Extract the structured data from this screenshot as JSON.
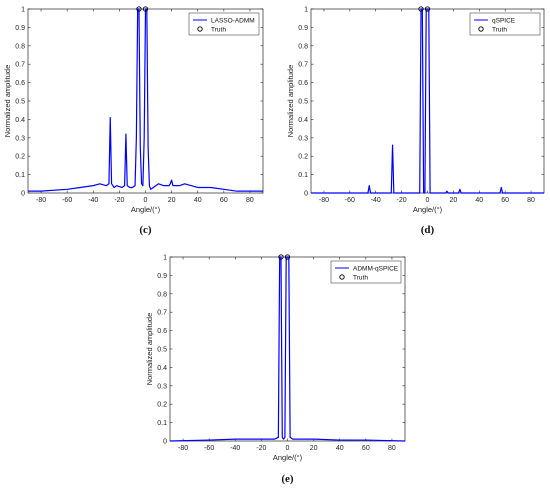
{
  "chart_data": [
    {
      "panel": "(c)",
      "type": "line",
      "xlabel": "Angle/(°)",
      "ylabel": "Normalized amplitude",
      "xlim": [
        -90,
        90
      ],
      "ylim": [
        0,
        1
      ],
      "xticks": [
        -80,
        -60,
        -40,
        -20,
        0,
        20,
        40,
        60,
        80
      ],
      "yticks": [
        0,
        0.1,
        0.2,
        0.3,
        0.4,
        0.5,
        0.6,
        0.7,
        0.8,
        0.9,
        1
      ],
      "legend_position": "top-right",
      "series": [
        {
          "name": "LASSO-ADMM",
          "color": "#0000ff",
          "style": "line",
          "x": [
            -90,
            -80,
            -60,
            -50,
            -40,
            -35,
            -30,
            -28,
            -27,
            -26,
            -24,
            -22,
            -18,
            -16,
            -15,
            -14,
            -12,
            -10,
            -8,
            -7,
            -6,
            -5,
            -4,
            -3,
            -2,
            -1,
            0,
            1,
            2,
            3,
            4,
            6,
            8,
            10,
            14,
            18,
            19,
            20,
            21,
            22,
            26,
            30,
            40,
            50,
            60,
            70,
            80,
            90
          ],
          "y": [
            0.01,
            0.01,
            0.02,
            0.03,
            0.04,
            0.05,
            0.04,
            0.05,
            0.41,
            0.05,
            0.03,
            0.04,
            0.03,
            0.04,
            0.32,
            0.04,
            0.03,
            0.03,
            0.04,
            0.3,
            1,
            1,
            0.25,
            0.05,
            0.04,
            0.3,
            1,
            1,
            0.25,
            0.04,
            0.02,
            0.03,
            0.04,
            0.05,
            0.04,
            0.04,
            0.05,
            0.07,
            0.04,
            0.04,
            0.04,
            0.05,
            0.03,
            0.03,
            0.02,
            0.01,
            0.01,
            0.01
          ]
        },
        {
          "name": "Truth",
          "style": "marker",
          "color": "#000000",
          "x": [
            -5,
            0
          ],
          "y": [
            1,
            1
          ]
        }
      ]
    },
    {
      "panel": "(d)",
      "type": "line",
      "xlabel": "Angle/(°)",
      "ylabel": "Normalized amplitude",
      "xlim": [
        -90,
        90
      ],
      "ylim": [
        0,
        1
      ],
      "xticks": [
        -80,
        -60,
        -40,
        -20,
        0,
        20,
        40,
        60,
        80
      ],
      "yticks": [
        0,
        0.1,
        0.2,
        0.3,
        0.4,
        0.5,
        0.6,
        0.7,
        0.8,
        0.9,
        1
      ],
      "legend_position": "top-right",
      "series": [
        {
          "name": "qSPICE",
          "color": "#0000ff",
          "style": "line",
          "x": [
            -90,
            -46,
            -45,
            -44,
            -28,
            -27,
            -26,
            -6,
            -5,
            -4,
            -3,
            -2,
            -1,
            0,
            1,
            2,
            14,
            15,
            16,
            24,
            25,
            26,
            56,
            57,
            58,
            90
          ],
          "y": [
            0,
            0,
            0.04,
            0,
            0,
            0.26,
            0,
            0,
            1,
            1,
            0,
            0,
            1,
            1,
            1,
            0,
            0,
            0.01,
            0,
            0,
            0.02,
            0,
            0,
            0.03,
            0,
            0
          ]
        },
        {
          "name": "Truth",
          "style": "marker",
          "color": "#000000",
          "x": [
            -5,
            0
          ],
          "y": [
            1,
            1
          ]
        }
      ]
    },
    {
      "panel": "(e)",
      "type": "line",
      "xlabel": "Angle/(°)",
      "ylabel": "Normalized amplitude",
      "xlim": [
        -90,
        90
      ],
      "ylim": [
        0,
        1
      ],
      "xticks": [
        -80,
        -60,
        -40,
        -20,
        0,
        20,
        40,
        60,
        80
      ],
      "yticks": [
        0,
        0.1,
        0.2,
        0.3,
        0.4,
        0.5,
        0.6,
        0.7,
        0.8,
        0.9,
        1
      ],
      "legend_position": "top-right",
      "series": [
        {
          "name": "ADMM-qSPICE",
          "color": "#0000ff",
          "style": "line",
          "x": [
            -90,
            -60,
            -40,
            -20,
            -10,
            -7,
            -6,
            -5,
            -4,
            -3,
            -2,
            -1,
            0,
            1,
            2,
            4,
            10,
            20,
            40,
            60,
            90
          ],
          "y": [
            0,
            0.005,
            0.01,
            0.01,
            0.01,
            0.02,
            1,
            1,
            0.02,
            0.01,
            0.02,
            1,
            1,
            1,
            0.02,
            0.01,
            0.01,
            0.01,
            0.005,
            0.005,
            0
          ]
        },
        {
          "name": "Truth",
          "style": "marker",
          "color": "#000000",
          "x": [
            -5,
            0
          ],
          "y": [
            1,
            1
          ]
        }
      ]
    }
  ]
}
